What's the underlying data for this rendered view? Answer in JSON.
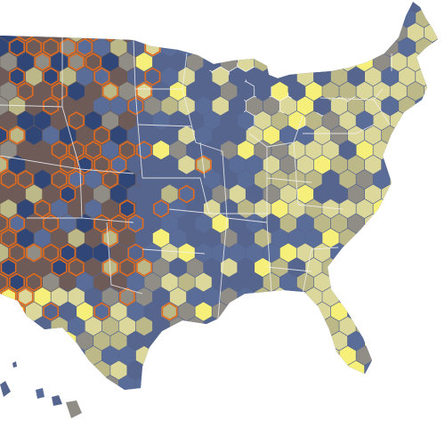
{
  "map": {
    "region": "contiguous-united-states",
    "mark_shape": "hexagon",
    "colors": {
      "background": "#ffffff",
      "west_fill": "#6e5b58",
      "land_fill": "#56658d",
      "hex_dark_blue": "#2f4677",
      "hex_mid_blue": "#5a6d99",
      "hex_gray": "#8f8d86",
      "hex_olive": "#bcb887",
      "hex_pale_yellow": "#dcd79a",
      "hex_bright_yellow": "#f6f07a",
      "hex_outline_orange": "#e06a1e",
      "state_border": "#f2f2f2"
    }
  }
}
